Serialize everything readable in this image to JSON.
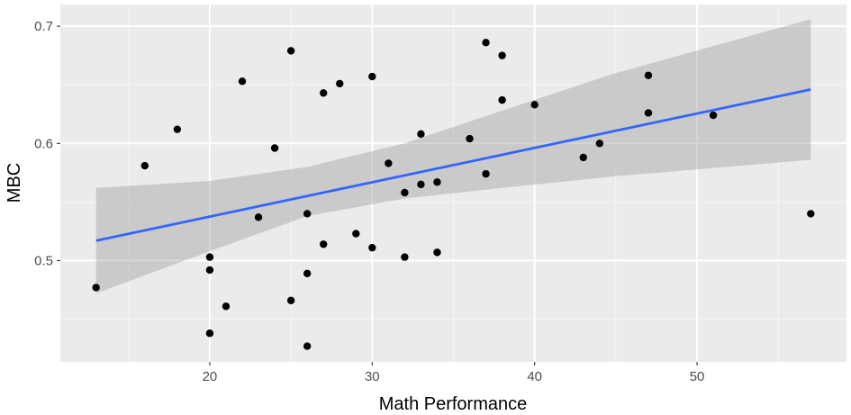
{
  "chart_data": {
    "type": "scatter",
    "xlabel": "Math Performance",
    "ylabel": "MBC",
    "xlim": [
      10.8,
      59.2
    ],
    "ylim": [
      0.4136,
      0.7185
    ],
    "x_ticks": [
      20,
      30,
      40,
      50
    ],
    "x_tick_labels": [
      "20",
      "30",
      "40",
      "50"
    ],
    "x_minor_ticks": [
      15,
      25,
      35,
      45,
      55
    ],
    "y_ticks": [
      0.5,
      0.6,
      0.7
    ],
    "y_tick_labels": [
      "0.5",
      "0.6",
      "0.7"
    ],
    "y_minor_ticks": [
      0.45,
      0.55,
      0.65
    ],
    "grid": true,
    "points": {
      "x": [
        13,
        16,
        18,
        20,
        20,
        20,
        21,
        22,
        23,
        24,
        25,
        25,
        26,
        26,
        26,
        27,
        27,
        28,
        29,
        30,
        30,
        31,
        32,
        32,
        33,
        33,
        34,
        34,
        36,
        37,
        37,
        38,
        38,
        40,
        43,
        44,
        47,
        47,
        51,
        57
      ],
      "y": [
        0.477,
        0.581,
        0.612,
        0.503,
        0.492,
        0.438,
        0.461,
        0.653,
        0.537,
        0.596,
        0.679,
        0.466,
        0.54,
        0.489,
        0.427,
        0.643,
        0.514,
        0.651,
        0.523,
        0.657,
        0.511,
        0.583,
        0.558,
        0.503,
        0.608,
        0.565,
        0.567,
        0.507,
        0.604,
        0.686,
        0.574,
        0.675,
        0.637,
        0.633,
        0.588,
        0.6,
        0.658,
        0.626,
        0.624,
        0.54
      ]
    },
    "fit": {
      "method": "linear",
      "x_range": [
        13,
        57
      ],
      "line": [
        [
          13,
          0.517
        ],
        [
          57,
          0.646
        ]
      ],
      "band_upper": [
        [
          13,
          0.562
        ],
        [
          20,
          0.568
        ],
        [
          26,
          0.58
        ],
        [
          32,
          0.6
        ],
        [
          38,
          0.628
        ],
        [
          45,
          0.66
        ],
        [
          57,
          0.706
        ]
      ],
      "band_lower": [
        [
          13,
          0.472
        ],
        [
          20,
          0.508
        ],
        [
          26,
          0.538
        ],
        [
          32,
          0.553
        ],
        [
          38,
          0.562
        ],
        [
          45,
          0.572
        ],
        [
          57,
          0.586
        ]
      ]
    },
    "colors": {
      "panel": "#ebebeb",
      "grid_major": "#ffffff",
      "point": "#000000",
      "line": "#3366ff",
      "band": "#999999"
    }
  }
}
